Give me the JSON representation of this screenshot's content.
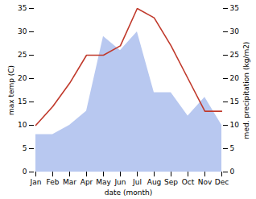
{
  "chart_data": {
    "type": "line",
    "xlabel": "date (month)",
    "ylabel": "max temp (C)",
    "y2label": "med. precipitation (kg/m2)",
    "categories": [
      "Jan",
      "Feb",
      "Mar",
      "Apr",
      "May",
      "Jun",
      "Jul",
      "Aug",
      "Sep",
      "Oct",
      "Nov",
      "Dec"
    ],
    "series": [
      {
        "type": "area",
        "color": "#b8c8f0",
        "values": [
          8,
          8,
          10,
          13,
          29,
          26,
          30,
          17,
          17,
          12,
          16,
          10
        ]
      },
      {
        "type": "line",
        "color": "#c0392b",
        "values": [
          10,
          14,
          19,
          25,
          25,
          27,
          35,
          33,
          27,
          20,
          13,
          13
        ]
      }
    ],
    "ylim": [
      0,
      35
    ],
    "yticks": [
      0,
      5,
      10,
      15,
      20,
      25,
      30,
      35
    ],
    "y2lim": [
      0,
      35
    ],
    "y2ticks": [
      0,
      5,
      10,
      15,
      20,
      25,
      30,
      35
    ],
    "grid": false
  }
}
